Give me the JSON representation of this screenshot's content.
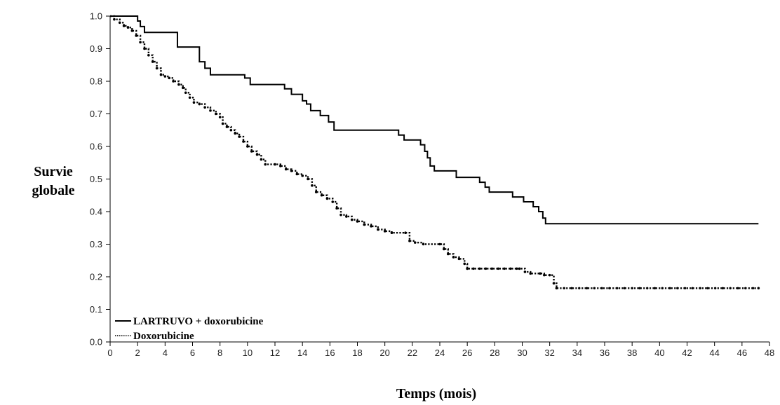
{
  "chart_data": {
    "type": "line",
    "xlabel": "Temps (mois)",
    "ylabel_lines": [
      "Survie",
      "globale"
    ],
    "xlim": [
      0,
      48
    ],
    "ylim": [
      0,
      1
    ],
    "x_ticks": [
      0,
      2,
      4,
      6,
      8,
      10,
      12,
      14,
      16,
      18,
      20,
      22,
      24,
      26,
      28,
      30,
      32,
      34,
      36,
      38,
      40,
      42,
      44,
      46,
      48
    ],
    "y_ticks": [
      "0.0",
      "0.1",
      "0.2",
      "0.3",
      "0.4",
      "0.5",
      "0.6",
      "0.7",
      "0.8",
      "0.9",
      "1.0"
    ],
    "grid": false,
    "legend_position": "bottom-left",
    "series": [
      {
        "name": "LARTRUVO + doxorubicine",
        "style": "solid",
        "color": "#000000",
        "points": [
          [
            0,
            1.0
          ],
          [
            1.8,
            1.0
          ],
          [
            2.0,
            0.985
          ],
          [
            2.2,
            0.968
          ],
          [
            2.5,
            0.95
          ],
          [
            4.8,
            0.95
          ],
          [
            4.9,
            0.905
          ],
          [
            6.1,
            0.905
          ],
          [
            6.5,
            0.86
          ],
          [
            6.9,
            0.84
          ],
          [
            7.3,
            0.82
          ],
          [
            9.2,
            0.82
          ],
          [
            9.8,
            0.81
          ],
          [
            10.2,
            0.79
          ],
          [
            12.4,
            0.79
          ],
          [
            12.7,
            0.777
          ],
          [
            13.2,
            0.76
          ],
          [
            14.0,
            0.74
          ],
          [
            14.3,
            0.73
          ],
          [
            14.6,
            0.71
          ],
          [
            15.3,
            0.695
          ],
          [
            15.9,
            0.675
          ],
          [
            16.3,
            0.65
          ],
          [
            20.6,
            0.65
          ],
          [
            21.0,
            0.635
          ],
          [
            21.4,
            0.62
          ],
          [
            22.3,
            0.62
          ],
          [
            22.6,
            0.605
          ],
          [
            22.9,
            0.585
          ],
          [
            23.1,
            0.565
          ],
          [
            23.3,
            0.54
          ],
          [
            23.6,
            0.525
          ],
          [
            25.0,
            0.525
          ],
          [
            25.2,
            0.505
          ],
          [
            26.7,
            0.505
          ],
          [
            26.9,
            0.49
          ],
          [
            27.3,
            0.475
          ],
          [
            27.6,
            0.46
          ],
          [
            29.0,
            0.46
          ],
          [
            29.3,
            0.445
          ],
          [
            30.1,
            0.43
          ],
          [
            30.8,
            0.415
          ],
          [
            31.2,
            0.4
          ],
          [
            31.5,
            0.38
          ],
          [
            31.7,
            0.363
          ],
          [
            47.2,
            0.363
          ]
        ]
      },
      {
        "name": "Doxorubicine",
        "style": "dotted",
        "color": "#000000",
        "points": [
          [
            0,
            1.0
          ],
          [
            0.3,
            0.99
          ],
          [
            0.7,
            0.98
          ],
          [
            1.0,
            0.97
          ],
          [
            1.3,
            0.965
          ],
          [
            1.6,
            0.955
          ],
          [
            1.9,
            0.94
          ],
          [
            2.2,
            0.92
          ],
          [
            2.5,
            0.9
          ],
          [
            2.8,
            0.88
          ],
          [
            3.1,
            0.86
          ],
          [
            3.4,
            0.84
          ],
          [
            3.7,
            0.82
          ],
          [
            4.0,
            0.815
          ],
          [
            4.3,
            0.81
          ],
          [
            4.6,
            0.8
          ],
          [
            5.0,
            0.79
          ],
          [
            5.3,
            0.78
          ],
          [
            5.5,
            0.765
          ],
          [
            5.8,
            0.75
          ],
          [
            6.1,
            0.735
          ],
          [
            6.5,
            0.73
          ],
          [
            6.9,
            0.72
          ],
          [
            7.3,
            0.71
          ],
          [
            7.7,
            0.7
          ],
          [
            8.0,
            0.69
          ],
          [
            8.2,
            0.67
          ],
          [
            8.5,
            0.66
          ],
          [
            8.8,
            0.65
          ],
          [
            9.1,
            0.64
          ],
          [
            9.4,
            0.63
          ],
          [
            9.7,
            0.615
          ],
          [
            10.0,
            0.6
          ],
          [
            10.3,
            0.585
          ],
          [
            10.7,
            0.575
          ],
          [
            11.0,
            0.56
          ],
          [
            11.3,
            0.545
          ],
          [
            12.0,
            0.545
          ],
          [
            12.4,
            0.54
          ],
          [
            12.8,
            0.53
          ],
          [
            13.2,
            0.525
          ],
          [
            13.6,
            0.515
          ],
          [
            14.0,
            0.51
          ],
          [
            14.4,
            0.5
          ],
          [
            14.7,
            0.48
          ],
          [
            15.0,
            0.46
          ],
          [
            15.4,
            0.45
          ],
          [
            15.8,
            0.44
          ],
          [
            16.2,
            0.43
          ],
          [
            16.5,
            0.41
          ],
          [
            16.8,
            0.39
          ],
          [
            17.2,
            0.385
          ],
          [
            17.6,
            0.375
          ],
          [
            18.0,
            0.37
          ],
          [
            18.5,
            0.36
          ],
          [
            19.0,
            0.355
          ],
          [
            19.5,
            0.345
          ],
          [
            20.0,
            0.34
          ],
          [
            20.5,
            0.335
          ],
          [
            21.5,
            0.335
          ],
          [
            21.8,
            0.31
          ],
          [
            22.2,
            0.305
          ],
          [
            22.8,
            0.3
          ],
          [
            24.0,
            0.3
          ],
          [
            24.3,
            0.285
          ],
          [
            24.6,
            0.27
          ],
          [
            25.0,
            0.26
          ],
          [
            25.4,
            0.255
          ],
          [
            25.8,
            0.24
          ],
          [
            26.0,
            0.225
          ],
          [
            29.8,
            0.225
          ],
          [
            30.2,
            0.215
          ],
          [
            30.6,
            0.21
          ],
          [
            31.3,
            0.21
          ],
          [
            31.6,
            0.205
          ],
          [
            32.0,
            0.205
          ],
          [
            32.3,
            0.18
          ],
          [
            32.5,
            0.165
          ],
          [
            47.2,
            0.165
          ]
        ]
      }
    ]
  }
}
